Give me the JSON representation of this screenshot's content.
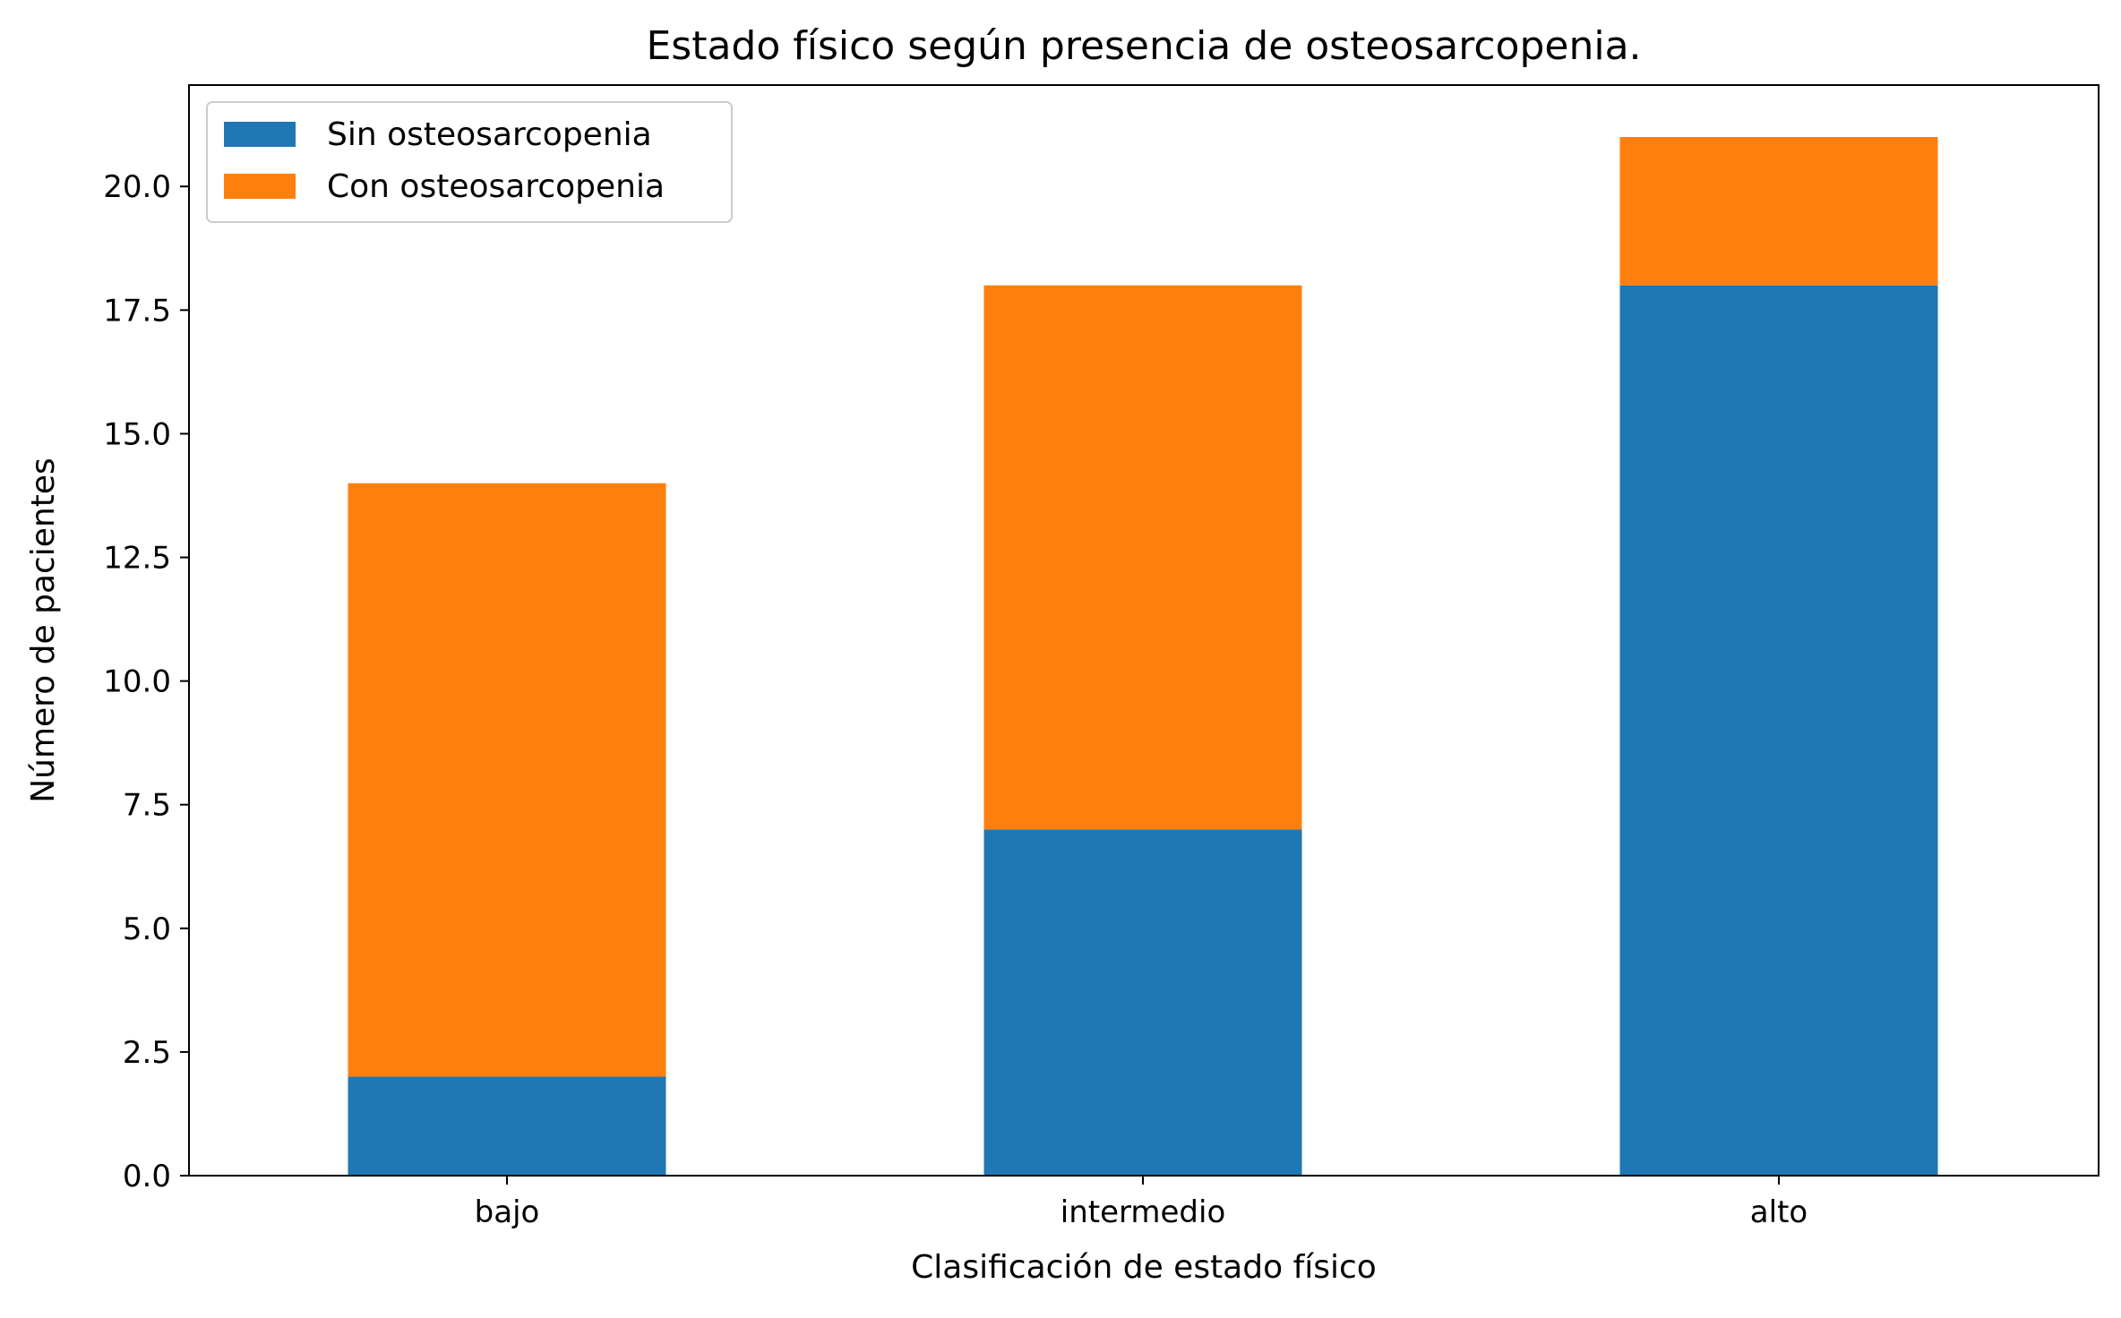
{
  "chart_data": {
    "type": "bar",
    "stacked": true,
    "title": "Estado físico según presencia de osteosarcopenia.",
    "xlabel": "Clasificación de estado físico",
    "ylabel": "Número de pacientes",
    "categories": [
      "bajo",
      "intermedio",
      "alto"
    ],
    "series": [
      {
        "name": "Sin osteosarcopenia",
        "color": "#1f77b4",
        "values": [
          2,
          7,
          18
        ]
      },
      {
        "name": "Con osteosarcopenia",
        "color": "#ff7f0e",
        "values": [
          12,
          11,
          3
        ]
      }
    ],
    "ylim": [
      0,
      22.05
    ],
    "yticks": [
      "0.0",
      "2.5",
      "5.0",
      "7.5",
      "10.0",
      "12.5",
      "15.0",
      "17.5",
      "20.0"
    ],
    "grid": false,
    "legend_position": "top-left"
  }
}
